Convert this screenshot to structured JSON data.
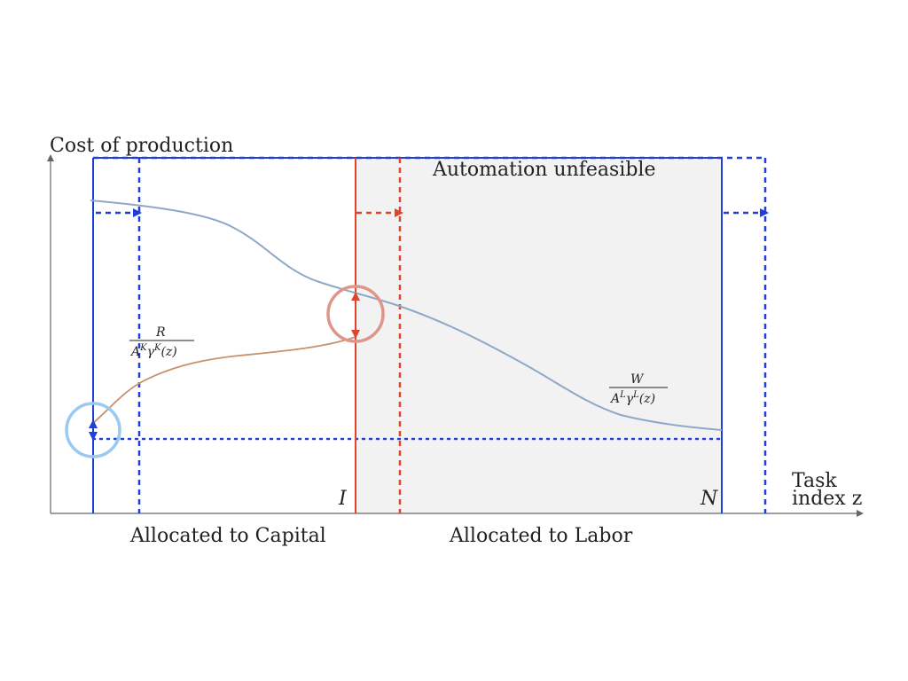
{
  "labels": {
    "y_axis": "Cost of production",
    "x_axis_line1": "Task",
    "x_axis_line2": "index z",
    "automation_unfeasible": "Automation unfeasible",
    "allocated_capital": "Allocated to Capital",
    "allocated_labor": "Allocated to Labor",
    "threshold_I": "I",
    "threshold_N": "N"
  },
  "formulas": {
    "capital": {
      "numerator": "R",
      "den_a": "A",
      "den_a_sup": "K",
      "den_g": "γ",
      "den_g_sup": "K",
      "den_arg": "(z)"
    },
    "labor": {
      "numerator": "W",
      "den_a": "A",
      "den_a_sup": "L",
      "den_g": "γ",
      "den_g_sup": "L",
      "den_arg": "(z)"
    }
  },
  "colors": {
    "axis": "#666666",
    "blue": "#1f3fd8",
    "red": "#e0452b",
    "labor_curve": "#8fa8c8",
    "capital_curve": "#c9906e",
    "shade": "#f2f2f2",
    "blue_circle": "#9cc9f0",
    "red_circle": "#e0958a"
  }
}
